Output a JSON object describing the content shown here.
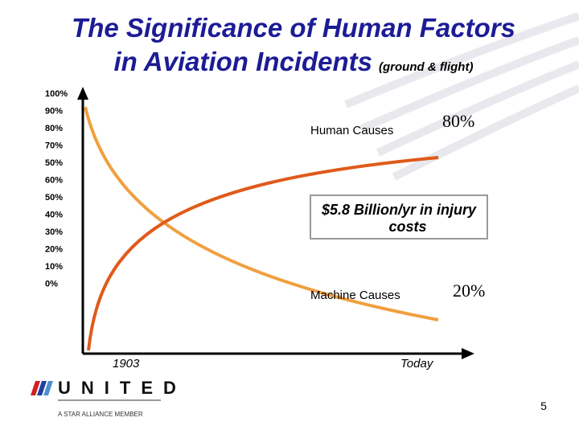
{
  "header": {
    "title_line1": "The Significance of Human Factors",
    "title_line2": "in Aviation Incidents",
    "title_note": "(ground & flight)"
  },
  "y_axis_labels": [
    "100%",
    "90%",
    "80%",
    "70%",
    "50%",
    "60%",
    "50%",
    "40%",
    "30%",
    "20%",
    "10%",
    "0%"
  ],
  "labels": {
    "human_causes": "Human Causes",
    "human_share": "80%",
    "cost_line1": "$5.8 Billion/yr in injury",
    "cost_line2": "costs",
    "machine_causes": "Machine Causes",
    "machine_share": "20%",
    "x_start": "1903",
    "x_end": "Today"
  },
  "logo": {
    "name": "UNITED",
    "tagline": "A STAR ALLIANCE MEMBER"
  },
  "page_number": "5"
}
